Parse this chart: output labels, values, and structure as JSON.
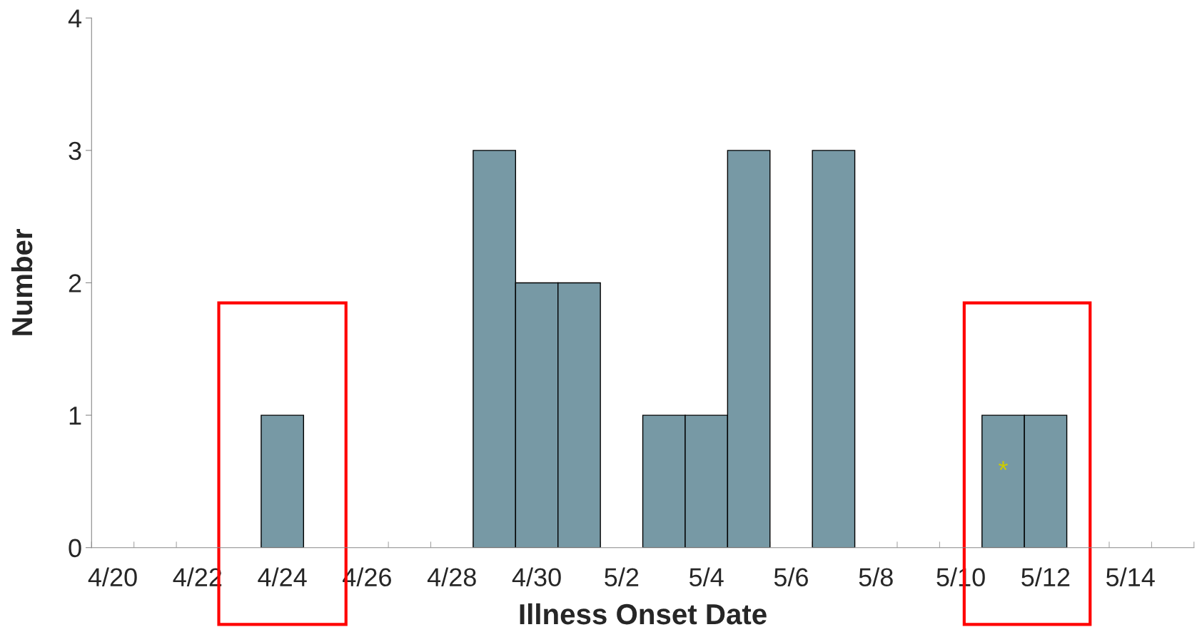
{
  "chart_data": {
    "type": "bar",
    "xlabel": "Illness Onset Date",
    "ylabel": "Number",
    "categories": [
      "4/20",
      null,
      "4/22",
      null,
      "4/24",
      null,
      "4/26",
      null,
      "4/28",
      null,
      "4/30",
      null,
      "5/2",
      null,
      "5/4",
      null,
      "5/6",
      null,
      "5/8",
      null,
      "5/10",
      null,
      "5/12",
      null,
      "5/14",
      null
    ],
    "values": [
      0,
      0,
      0,
      0,
      1,
      0,
      0,
      0,
      0,
      3,
      2,
      2,
      0,
      1,
      1,
      3,
      0,
      3,
      0,
      0,
      0,
      1,
      1,
      0,
      0,
      0
    ],
    "color": "#7799a5",
    "ylim": [
      0,
      4
    ],
    "yticks": [
      0,
      1,
      2,
      3,
      4
    ],
    "grid": false,
    "legend": false,
    "annotations": [
      "*"
    ]
  }
}
